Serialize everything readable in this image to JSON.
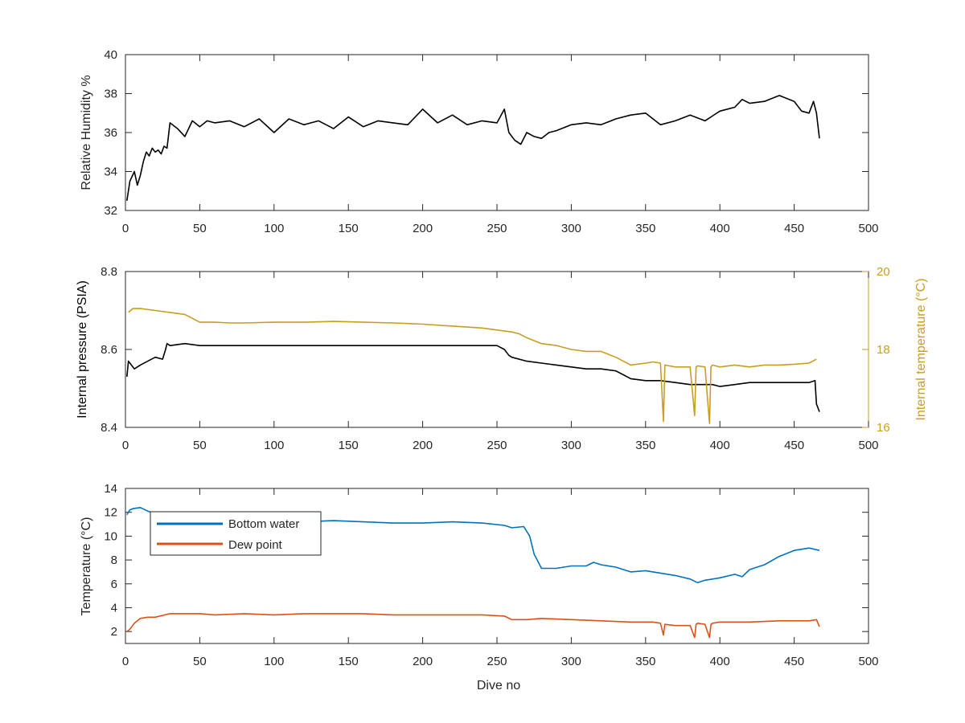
{
  "figure": {
    "panels": [
      {
        "id": "humidity",
        "y_label": "Relative Humidity %",
        "right_label": ""
      },
      {
        "id": "pressure",
        "y_label": "Internal pressure (PSIA)",
        "right_label": "Internal temperature (°C)"
      },
      {
        "id": "temperature",
        "y_label": "Temperature (°C)",
        "right_label": ""
      }
    ],
    "x_label": "Dive no"
  },
  "chart_data": [
    {
      "type": "line",
      "title": "",
      "xlabel": "",
      "ylabel": "Relative Humidity %",
      "xlim": [
        0,
        500
      ],
      "ylim": [
        32,
        40
      ],
      "xticks": [
        0,
        50,
        100,
        150,
        200,
        250,
        300,
        350,
        400,
        450,
        500
      ],
      "yticks": [
        32,
        34,
        36,
        38,
        40
      ],
      "grid": false,
      "series": [
        {
          "name": "",
          "color": "#000000",
          "x": [
            1,
            3,
            6,
            8,
            10,
            12,
            14,
            16,
            18,
            20,
            22,
            24,
            26,
            28,
            30,
            35,
            40,
            45,
            50,
            55,
            60,
            70,
            80,
            90,
            100,
            110,
            120,
            130,
            140,
            150,
            160,
            170,
            180,
            190,
            200,
            210,
            220,
            230,
            240,
            250,
            255,
            258,
            262,
            266,
            270,
            275,
            280,
            285,
            290,
            300,
            310,
            320,
            330,
            340,
            350,
            360,
            370,
            380,
            390,
            400,
            410,
            415,
            420,
            430,
            440,
            450,
            455,
            460,
            463,
            465,
            467
          ],
          "values": [
            32.5,
            33.5,
            34.0,
            33.3,
            33.8,
            34.5,
            35.0,
            34.8,
            35.2,
            35.0,
            35.1,
            34.9,
            35.3,
            35.2,
            36.5,
            36.2,
            35.8,
            36.6,
            36.3,
            36.6,
            36.5,
            36.6,
            36.3,
            36.7,
            36.0,
            36.7,
            36.4,
            36.6,
            36.2,
            36.8,
            36.3,
            36.6,
            36.5,
            36.4,
            37.2,
            36.5,
            36.9,
            36.4,
            36.6,
            36.5,
            37.2,
            36.0,
            35.6,
            35.4,
            36.0,
            35.8,
            35.7,
            36.0,
            36.1,
            36.4,
            36.5,
            36.4,
            36.7,
            36.9,
            37.0,
            36.4,
            36.6,
            36.9,
            36.6,
            37.1,
            37.3,
            37.7,
            37.5,
            37.6,
            37.9,
            37.6,
            37.1,
            37.0,
            37.6,
            37.0,
            35.7
          ]
        }
      ]
    },
    {
      "type": "line",
      "title": "",
      "xlabel": "",
      "ylabel": "Internal pressure (PSIA)",
      "y2label": "Internal temperature (°C)",
      "xlim": [
        0,
        500
      ],
      "ylim": [
        8.4,
        8.8
      ],
      "y2lim": [
        16,
        20
      ],
      "xticks": [
        0,
        50,
        100,
        150,
        200,
        250,
        300,
        350,
        400,
        450,
        500
      ],
      "yticks": [
        8.4,
        8.6,
        8.8
      ],
      "y2ticks": [
        16,
        18,
        20
      ],
      "grid": false,
      "series": [
        {
          "name": "",
          "axis": "left",
          "color": "#000000",
          "x": [
            1,
            2,
            4,
            6,
            10,
            15,
            20,
            25,
            27,
            28,
            30,
            40,
            50,
            60,
            70,
            80,
            90,
            100,
            120,
            140,
            160,
            180,
            200,
            220,
            240,
            250,
            255,
            258,
            260,
            270,
            280,
            290,
            300,
            310,
            320,
            330,
            335,
            340,
            350,
            360,
            370,
            380,
            390,
            395,
            400,
            410,
            420,
            430,
            440,
            450,
            460,
            464,
            465,
            467
          ],
          "values": [
            8.53,
            8.57,
            8.56,
            8.55,
            8.56,
            8.57,
            8.58,
            8.575,
            8.6,
            8.615,
            8.61,
            8.615,
            8.61,
            8.61,
            8.61,
            8.61,
            8.61,
            8.61,
            8.61,
            8.61,
            8.61,
            8.61,
            8.61,
            8.61,
            8.61,
            8.61,
            8.6,
            8.585,
            8.58,
            8.57,
            8.565,
            8.56,
            8.555,
            8.55,
            8.55,
            8.545,
            8.535,
            8.525,
            8.52,
            8.52,
            8.515,
            8.51,
            8.51,
            8.51,
            8.505,
            8.51,
            8.515,
            8.515,
            8.515,
            8.515,
            8.515,
            8.52,
            8.46,
            8.44
          ]
        },
        {
          "name": "",
          "axis": "right",
          "color": "#c79e1e",
          "x": [
            2,
            5,
            10,
            20,
            30,
            40,
            50,
            60,
            70,
            80,
            100,
            120,
            140,
            160,
            180,
            200,
            220,
            240,
            250,
            260,
            265,
            270,
            280,
            290,
            300,
            310,
            320,
            330,
            335,
            340,
            350,
            355,
            360,
            362,
            363,
            370,
            380,
            383,
            384,
            385,
            390,
            393,
            394,
            395,
            400,
            410,
            420,
            430,
            440,
            450,
            460,
            465
          ],
          "values": [
            18.95,
            19.05,
            19.05,
            19.0,
            18.95,
            18.9,
            18.7,
            18.7,
            18.68,
            18.68,
            18.7,
            18.7,
            18.72,
            18.7,
            18.68,
            18.65,
            18.6,
            18.55,
            18.5,
            18.45,
            18.4,
            18.3,
            18.15,
            18.1,
            18.0,
            17.95,
            17.95,
            17.8,
            17.7,
            17.6,
            17.65,
            17.68,
            17.65,
            16.15,
            17.6,
            17.55,
            17.55,
            16.3,
            17.55,
            17.58,
            17.55,
            16.1,
            17.55,
            17.6,
            17.55,
            17.6,
            17.55,
            17.6,
            17.6,
            17.62,
            17.65,
            17.75
          ]
        }
      ]
    },
    {
      "type": "line",
      "title": "",
      "xlabel": "Dive no",
      "ylabel": "Temperature (°C)",
      "xlim": [
        0,
        500
      ],
      "ylim": [
        1,
        14
      ],
      "xticks": [
        0,
        50,
        100,
        150,
        200,
        250,
        300,
        350,
        400,
        450,
        500
      ],
      "yticks": [
        2,
        4,
        6,
        8,
        10,
        12,
        14
      ],
      "grid": false,
      "legend": {
        "position": "top-left",
        "entries": [
          "Bottom water",
          "Dew point"
        ]
      },
      "series": [
        {
          "name": "Bottom water",
          "color": "#0072bd",
          "x": [
            1,
            3,
            5,
            10,
            15,
            20,
            30,
            50,
            70,
            100,
            120,
            140,
            160,
            180,
            200,
            220,
            240,
            255,
            260,
            268,
            272,
            275,
            280,
            290,
            300,
            310,
            315,
            320,
            330,
            340,
            350,
            360,
            370,
            380,
            385,
            390,
            400,
            410,
            415,
            420,
            430,
            440,
            450,
            460,
            467
          ],
          "values": [
            11.8,
            12.2,
            12.3,
            12.4,
            12.1,
            11.9,
            11.5,
            11.4,
            11.3,
            11.3,
            11.2,
            11.3,
            11.2,
            11.1,
            11.1,
            11.2,
            11.1,
            10.9,
            10.7,
            10.8,
            10.0,
            8.5,
            7.3,
            7.3,
            7.5,
            7.5,
            7.8,
            7.6,
            7.4,
            7.0,
            7.1,
            6.9,
            6.7,
            6.4,
            6.1,
            6.3,
            6.5,
            6.8,
            6.6,
            7.2,
            7.6,
            8.3,
            8.8,
            9.0,
            8.8
          ]
        },
        {
          "name": "Dew point",
          "color": "#d95319",
          "x": [
            1,
            3,
            6,
            10,
            15,
            20,
            30,
            40,
            50,
            60,
            80,
            100,
            120,
            140,
            160,
            180,
            200,
            220,
            240,
            255,
            260,
            270,
            280,
            300,
            320,
            340,
            355,
            360,
            362,
            363,
            370,
            380,
            383,
            384,
            385,
            390,
            393,
            394,
            395,
            400,
            420,
            440,
            450,
            460,
            465,
            467
          ],
          "values": [
            2.0,
            2.2,
            2.7,
            3.1,
            3.2,
            3.2,
            3.5,
            3.5,
            3.5,
            3.4,
            3.5,
            3.4,
            3.5,
            3.5,
            3.5,
            3.4,
            3.4,
            3.4,
            3.4,
            3.3,
            3.0,
            3.0,
            3.1,
            3.0,
            2.9,
            2.8,
            2.8,
            2.7,
            1.7,
            2.6,
            2.5,
            2.5,
            1.5,
            2.6,
            2.7,
            2.6,
            1.5,
            2.6,
            2.7,
            2.8,
            2.8,
            2.9,
            2.9,
            2.9,
            3.0,
            2.4
          ]
        }
      ]
    }
  ]
}
